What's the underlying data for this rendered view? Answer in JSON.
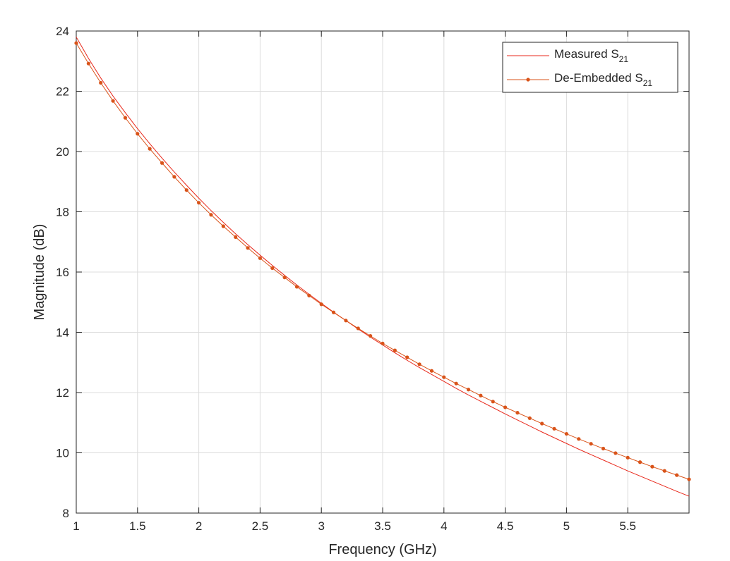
{
  "chart_data": {
    "type": "line",
    "title": "",
    "xlabel": "Frequency (GHz)",
    "ylabel": "Magnitude (dB)",
    "xlim": [
      1,
      6
    ],
    "ylim": [
      8,
      24
    ],
    "xticks": [
      "1",
      "1.5",
      "2",
      "2.5",
      "3",
      "3.5",
      "4",
      "4.5",
      "5",
      "5.5"
    ],
    "yticks": [
      "8",
      "10",
      "12",
      "14",
      "16",
      "18",
      "20",
      "22",
      "24"
    ],
    "grid": true,
    "legend_position": "top-right",
    "series": [
      {
        "name": "Measured S",
        "name_subscript": "21",
        "color": "#e8291c",
        "marker": "none",
        "x": [
          1.0,
          1.1,
          1.2,
          1.3,
          1.4,
          1.5,
          1.6,
          1.7,
          1.8,
          1.9,
          2.0,
          2.1,
          2.2,
          2.3,
          2.4,
          2.5,
          2.6,
          2.7,
          2.8,
          2.9,
          3.0,
          3.1,
          3.2,
          3.3,
          3.4,
          3.5,
          3.6,
          3.7,
          3.8,
          3.9,
          4.0,
          4.1,
          4.2,
          4.3,
          4.4,
          4.5,
          4.6,
          4.7,
          4.8,
          4.9,
          5.0,
          5.1,
          5.2,
          5.3,
          5.4,
          5.5,
          5.6,
          5.7,
          5.8,
          5.9,
          6.0
        ],
        "y": [
          23.8,
          23.09,
          22.44,
          21.84,
          21.29,
          20.76,
          20.26,
          19.78,
          19.32,
          18.88,
          18.45,
          18.04,
          17.65,
          17.27,
          16.91,
          16.56,
          16.22,
          15.89,
          15.57,
          15.26,
          14.96,
          14.67,
          14.39,
          14.11,
          13.84,
          13.58,
          13.32,
          13.07,
          12.83,
          12.6,
          12.37,
          12.14,
          11.92,
          11.71,
          11.5,
          11.29,
          11.09,
          10.89,
          10.69,
          10.5,
          10.31,
          10.12,
          9.94,
          9.76,
          9.58,
          9.4,
          9.23,
          9.06,
          8.89,
          8.72,
          8.56
        ]
      },
      {
        "name": "De-Embedded S",
        "name_subscript": "21",
        "color": "#d95319",
        "marker": "dot",
        "x": [
          1.0,
          1.1,
          1.2,
          1.3,
          1.4,
          1.5,
          1.6,
          1.7,
          1.8,
          1.9,
          2.0,
          2.1,
          2.2,
          2.3,
          2.4,
          2.5,
          2.6,
          2.7,
          2.8,
          2.9,
          3.0,
          3.1,
          3.2,
          3.3,
          3.4,
          3.5,
          3.6,
          3.7,
          3.8,
          3.9,
          4.0,
          4.1,
          4.2,
          4.3,
          4.4,
          4.5,
          4.6,
          4.7,
          4.8,
          4.9,
          5.0,
          5.1,
          5.2,
          5.3,
          5.4,
          5.5,
          5.6,
          5.7,
          5.8,
          5.9,
          6.0
        ],
        "y": [
          23.6,
          22.92,
          22.28,
          21.68,
          21.12,
          20.59,
          20.09,
          19.62,
          19.16,
          18.72,
          18.3,
          17.9,
          17.52,
          17.16,
          16.8,
          16.46,
          16.13,
          15.82,
          15.51,
          15.22,
          14.93,
          14.66,
          14.39,
          14.13,
          13.88,
          13.63,
          13.4,
          13.17,
          12.94,
          12.72,
          12.51,
          12.3,
          12.1,
          11.9,
          11.7,
          11.51,
          11.33,
          11.15,
          10.97,
          10.8,
          10.63,
          10.46,
          10.3,
          10.14,
          9.99,
          9.84,
          9.69,
          9.54,
          9.4,
          9.26,
          9.12
        ]
      }
    ]
  }
}
